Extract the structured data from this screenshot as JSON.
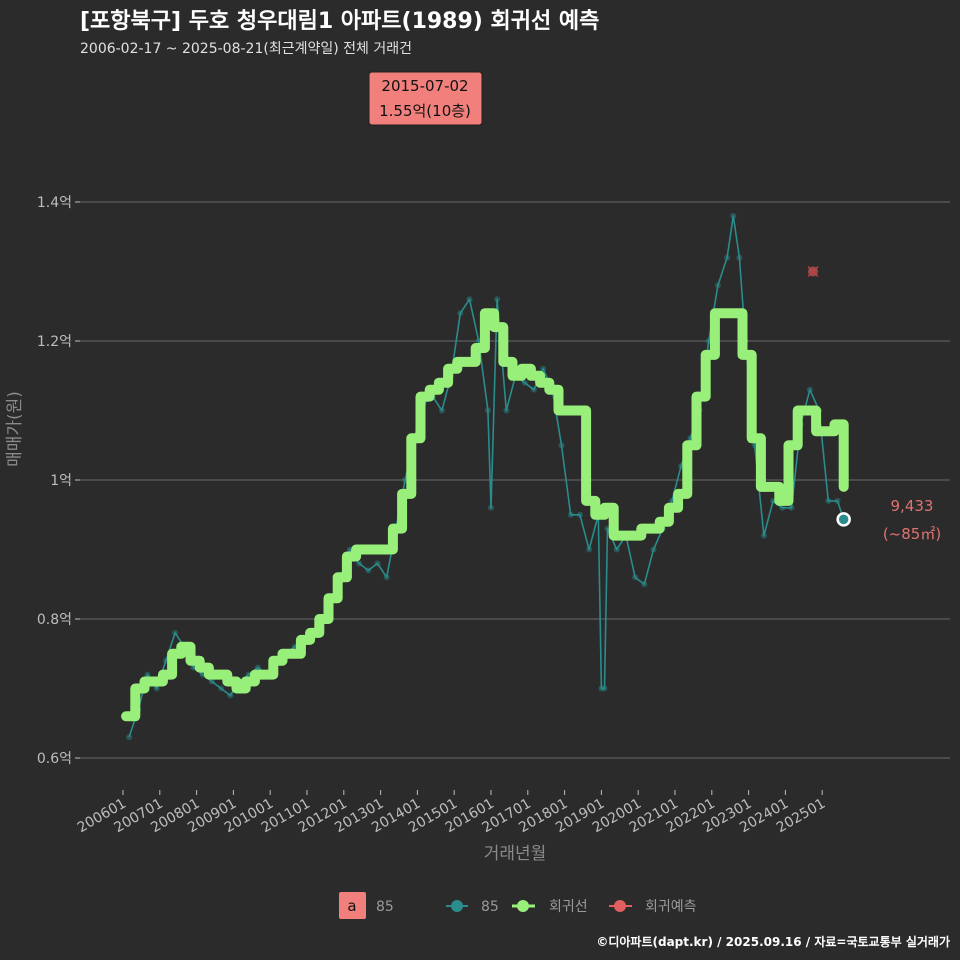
{
  "title": "[포항북구] 두호 청우대림1 아파트(1989) 회귀선 예측",
  "subtitle": "2006-02-17 ~ 2025-08-21(최근계약일) 전체 거래건",
  "caption": "©디아파트(dapt.kr) / 2025.09.16 / 자료=국토교통부 실거래가",
  "colors": {
    "background": "#2b2b2b",
    "series_85": "#2a8c8c",
    "regression": "#98f07a",
    "forecast": "#e06060",
    "callout_bg": "#f17f7b"
  },
  "chart_data": {
    "type": "line",
    "xlabel": "거래년월",
    "ylabel": "매매가(원)",
    "x_range": [
      "2005-12",
      "2025-12"
    ],
    "ylim": [
      0.55,
      1.62
    ],
    "y_unit": "억",
    "y_ticks": [
      {
        "value": 0.6,
        "label": "0.6억"
      },
      {
        "value": 0.8,
        "label": "0.8억"
      },
      {
        "value": 1.0,
        "label": "1억"
      },
      {
        "value": 1.2,
        "label": "1.2억"
      },
      {
        "value": 1.4,
        "label": "1.4억"
      }
    ],
    "x_ticks": [
      "200601",
      "200701",
      "200801",
      "200901",
      "201001",
      "201101",
      "201201",
      "201301",
      "201401",
      "201501",
      "201601",
      "201701",
      "201801",
      "201901",
      "202001",
      "202101",
      "202201",
      "202301",
      "202401",
      "202501"
    ],
    "grid": true,
    "legend_placement": "bottom",
    "legend": [
      {
        "kind": "label-box",
        "key": "a",
        "label": "85"
      },
      {
        "kind": "series",
        "label": "85"
      },
      {
        "kind": "series",
        "label": "회귀선"
      },
      {
        "kind": "series",
        "label": "회귀예측"
      }
    ],
    "callout": {
      "date": "2015-07-02",
      "value": 1.55,
      "line1": "2015-07-02",
      "line2": "1.55억(10층)"
    },
    "last_point": {
      "date": "2025-08",
      "value": 0.9433,
      "label": "9,433",
      "sublabel": "(~85㎡)"
    },
    "forecast_point": {
      "date": "2024-10",
      "value": 1.3
    },
    "series": [
      {
        "name": "85",
        "x": [
          "2006-03",
          "2006-06",
          "2006-09",
          "2006-12",
          "2007-03",
          "2007-06",
          "2007-09",
          "2007-12",
          "2008-03",
          "2008-06",
          "2008-09",
          "2008-12",
          "2009-03",
          "2009-06",
          "2009-09",
          "2009-12",
          "2010-03",
          "2010-06",
          "2010-09",
          "2010-12",
          "2011-03",
          "2011-06",
          "2011-09",
          "2011-12",
          "2012-03",
          "2012-06",
          "2012-09",
          "2012-12",
          "2013-03",
          "2013-06",
          "2013-09",
          "2013-12",
          "2014-03",
          "2014-06",
          "2014-09",
          "2014-12",
          "2015-03",
          "2015-06",
          "2015-09",
          "2015-12",
          "2016-01",
          "2016-03",
          "2016-06",
          "2016-09",
          "2016-12",
          "2017-03",
          "2017-06",
          "2017-09",
          "2017-12",
          "2018-03",
          "2018-06",
          "2018-09",
          "2018-12",
          "2019-01",
          "2019-02",
          "2019-03",
          "2019-06",
          "2019-09",
          "2019-12",
          "2020-03",
          "2020-06",
          "2020-09",
          "2020-12",
          "2021-03",
          "2021-06",
          "2021-09",
          "2021-12",
          "2022-03",
          "2022-06",
          "2022-08",
          "2022-10",
          "2022-12",
          "2023-03",
          "2023-06",
          "2023-09",
          "2023-12",
          "2024-03",
          "2024-06",
          "2024-09",
          "2024-12",
          "2025-03",
          "2025-06",
          "2025-08"
        ],
        "values": [
          0.63,
          0.67,
          0.72,
          0.7,
          0.74,
          0.78,
          0.76,
          0.73,
          0.72,
          0.71,
          0.7,
          0.69,
          0.71,
          0.72,
          0.73,
          0.72,
          0.74,
          0.75,
          0.76,
          0.77,
          0.78,
          0.8,
          0.83,
          0.86,
          0.9,
          0.88,
          0.87,
          0.88,
          0.86,
          0.93,
          1.0,
          1.06,
          1.11,
          1.12,
          1.1,
          1.15,
          1.24,
          1.26,
          1.2,
          1.1,
          0.96,
          1.26,
          1.1,
          1.15,
          1.14,
          1.13,
          1.16,
          1.13,
          1.05,
          0.95,
          0.95,
          0.9,
          0.95,
          0.7,
          0.7,
          0.93,
          0.9,
          0.92,
          0.86,
          0.85,
          0.9,
          0.93,
          0.97,
          1.02,
          1.06,
          1.1,
          1.2,
          1.28,
          1.32,
          1.38,
          1.32,
          1.2,
          1.05,
          0.92,
          0.97,
          0.96,
          0.96,
          1.08,
          1.13,
          1.1,
          0.97,
          0.97,
          0.9433
        ]
      },
      {
        "name": "회귀선",
        "x": [
          "2006-02",
          "2006-05",
          "2006-08",
          "2006-11",
          "2007-02",
          "2007-05",
          "2007-08",
          "2007-11",
          "2008-02",
          "2008-05",
          "2008-08",
          "2008-11",
          "2009-02",
          "2009-05",
          "2009-08",
          "2009-11",
          "2010-02",
          "2010-05",
          "2010-08",
          "2010-11",
          "2011-02",
          "2011-05",
          "2011-08",
          "2011-11",
          "2012-02",
          "2012-05",
          "2012-08",
          "2012-11",
          "2013-02",
          "2013-05",
          "2013-08",
          "2013-11",
          "2014-02",
          "2014-05",
          "2014-08",
          "2014-11",
          "2015-02",
          "2015-05",
          "2015-08",
          "2015-11",
          "2016-02",
          "2016-05",
          "2016-08",
          "2016-11",
          "2017-02",
          "2017-05",
          "2017-08",
          "2017-11",
          "2018-02",
          "2018-05",
          "2018-08",
          "2018-11",
          "2019-02",
          "2019-05",
          "2019-08",
          "2019-11",
          "2020-02",
          "2020-05",
          "2020-08",
          "2020-11",
          "2021-02",
          "2021-05",
          "2021-08",
          "2021-11",
          "2022-02",
          "2022-05",
          "2022-08",
          "2022-11",
          "2023-02",
          "2023-05",
          "2023-08",
          "2023-11",
          "2024-02",
          "2024-05",
          "2024-08",
          "2024-11",
          "2025-02",
          "2025-05",
          "2025-08"
        ],
        "values": [
          0.66,
          0.7,
          0.71,
          0.71,
          0.72,
          0.75,
          0.76,
          0.74,
          0.73,
          0.72,
          0.72,
          0.71,
          0.7,
          0.71,
          0.72,
          0.72,
          0.74,
          0.75,
          0.75,
          0.77,
          0.78,
          0.8,
          0.83,
          0.86,
          0.89,
          0.9,
          0.9,
          0.9,
          0.9,
          0.93,
          0.98,
          1.06,
          1.12,
          1.13,
          1.14,
          1.16,
          1.17,
          1.17,
          1.19,
          1.24,
          1.22,
          1.17,
          1.15,
          1.16,
          1.15,
          1.14,
          1.13,
          1.1,
          1.1,
          1.1,
          0.97,
          0.95,
          0.96,
          0.92,
          0.92,
          0.92,
          0.93,
          0.93,
          0.94,
          0.96,
          0.98,
          1.05,
          1.12,
          1.18,
          1.24,
          1.24,
          1.24,
          1.18,
          1.06,
          0.99,
          0.99,
          0.97,
          1.05,
          1.1,
          1.1,
          1.07,
          1.07,
          1.08,
          0.99
        ]
      }
    ]
  }
}
